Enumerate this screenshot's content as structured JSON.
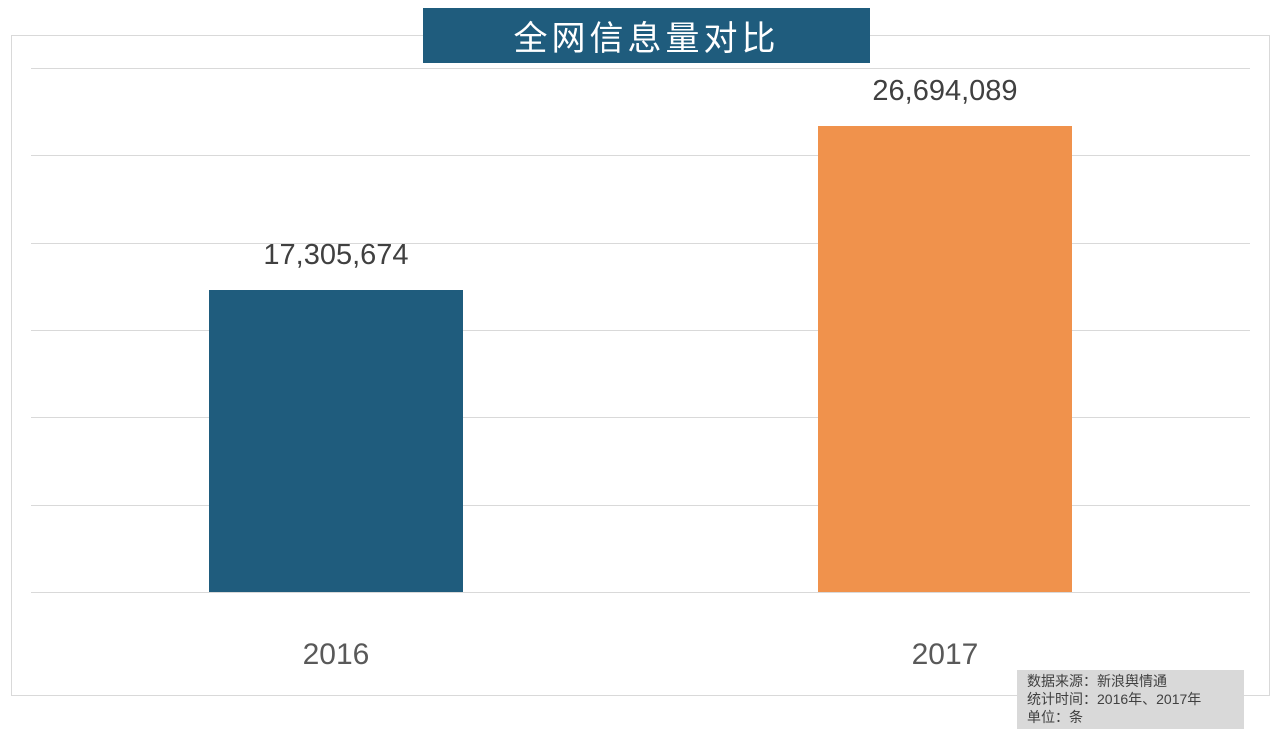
{
  "page": {
    "background": "#FFFFFF"
  },
  "title_banner": {
    "text": "全网信息量对比",
    "bg_color": "#1F5C7D",
    "text_color": "#FFFFFF"
  },
  "chart_data": {
    "type": "bar",
    "title": "全网信息量对比",
    "categories": [
      "2016",
      "2017"
    ],
    "values": [
      17305674,
      26694089
    ],
    "value_labels": [
      "17,305,674",
      "26,694,089"
    ],
    "bar_colors": [
      "#1F5C7D",
      "#F0924C"
    ],
    "xlabel": "",
    "ylabel": "",
    "ylim": [
      0,
      30000000
    ],
    "gridline_step": 5000000,
    "grid": true,
    "y_tick_labels_visible": false,
    "legend": false
  },
  "source_box": {
    "bg_color": "#D9D9D9",
    "text_color": "#404040",
    "lines": [
      "数据来源：新浪舆情通",
      "统计时间：2016年、2017年",
      "单位：条"
    ]
  },
  "colors": {
    "gridline": "#D9D9D9",
    "plot_border": "#D9D9D9",
    "value_label_text": "#404040",
    "category_label_text": "#595959"
  }
}
